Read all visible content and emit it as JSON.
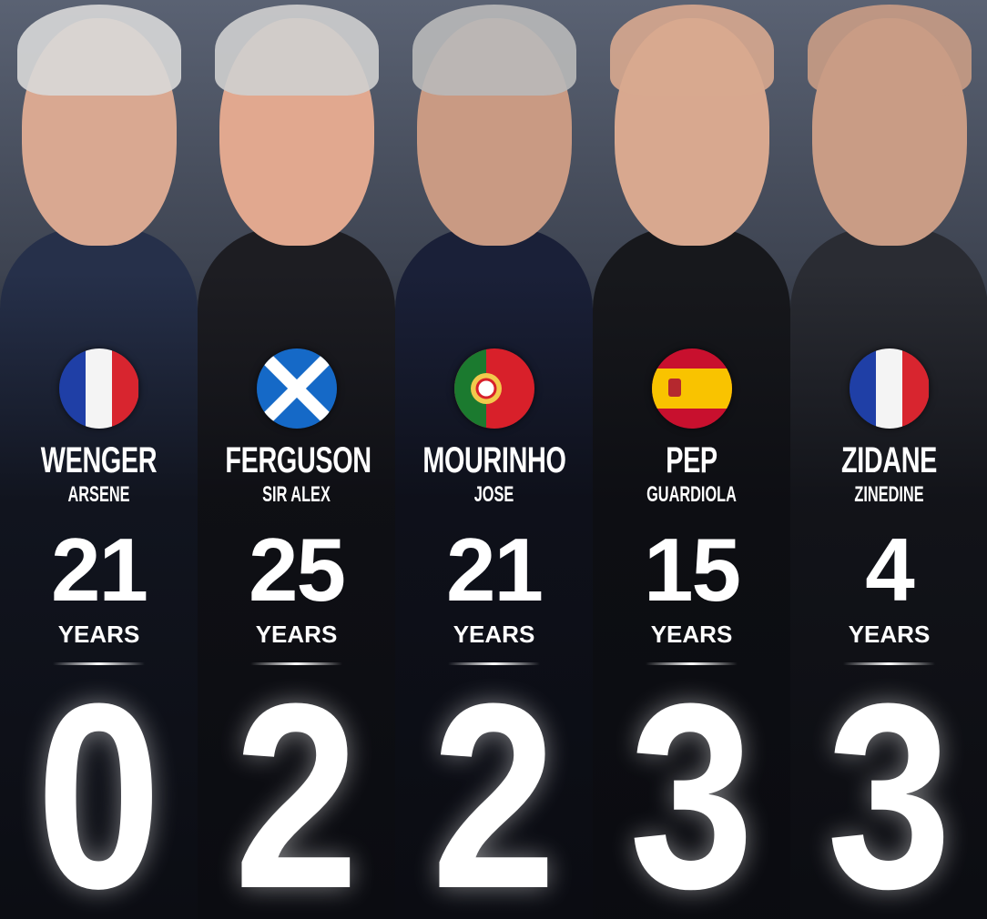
{
  "managers": [
    {
      "surname": "WENGER",
      "first_name": "ARSENE",
      "years": "21",
      "years_label": "YEARS",
      "count": "0",
      "flag": "france",
      "suit": "#26304a",
      "skin": "#d9a891",
      "hair": "#d8d8d8"
    },
    {
      "surname": "FERGUSON",
      "first_name": "SIR ALEX",
      "years": "25",
      "years_label": "YEARS",
      "count": "2",
      "flag": "scotland",
      "suit": "#1d1d22",
      "skin": "#e1a88f",
      "hair": "#cfcfcf"
    },
    {
      "surname": "MOURINHO",
      "first_name": "JOSE",
      "years": "21",
      "years_label": "YEARS",
      "count": "2",
      "flag": "portugal",
      "suit": "#1a2038",
      "skin": "#c99a83",
      "hair": "#b9b9b9"
    },
    {
      "surname": "PEP",
      "first_name": "GUARDIOLA",
      "years": "15",
      "years_label": "YEARS",
      "count": "3",
      "flag": "spain",
      "suit": "#17181c",
      "skin": "#d8a88f",
      "hair": "#d8a88f"
    },
    {
      "surname": "ZIDANE",
      "first_name": "ZINEDINE",
      "years": "4",
      "years_label": "YEARS",
      "count": "3",
      "flag": "france",
      "suit": "#2a2c33",
      "skin": "#c99c85",
      "hair": "#c99c85"
    }
  ]
}
